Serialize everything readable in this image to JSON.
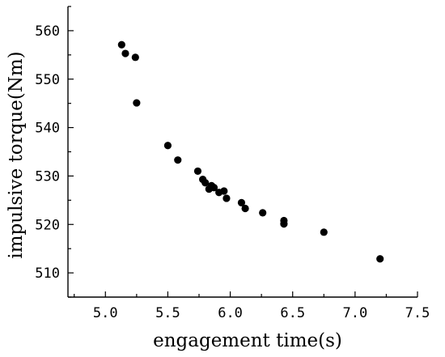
{
  "chart_data": {
    "type": "scatter",
    "title": "",
    "xlabel": "engagement time(s)",
    "ylabel": "impulsive torque(Nm)",
    "xlim": [
      4.7,
      7.5
    ],
    "ylim": [
      505,
      565
    ],
    "xticks": [
      5.0,
      5.5,
      6.0,
      6.5,
      7.0,
      7.5
    ],
    "xtick_labels": [
      "5.0",
      "5.5",
      "6.0",
      "6.5",
      "7.0",
      "7.5"
    ],
    "yticks": [
      510,
      520,
      530,
      540,
      550,
      560
    ],
    "ytick_labels": [
      "510",
      "520",
      "530",
      "540",
      "550",
      "560"
    ],
    "grid": false,
    "legend": "none",
    "marker_color": "#000000",
    "series": [
      {
        "x": [
          5.13,
          5.16,
          5.24,
          5.25,
          5.5,
          5.58,
          5.74,
          5.78,
          5.8,
          5.83,
          5.85,
          5.87,
          5.91,
          5.95,
          5.97,
          6.09,
          6.12,
          6.26,
          6.43,
          6.43,
          6.75,
          7.2
        ],
        "y": [
          557.1,
          555.3,
          554.5,
          545.1,
          536.3,
          533.3,
          531.0,
          529.3,
          528.6,
          527.3,
          528.0,
          527.6,
          526.6,
          526.9,
          525.4,
          524.5,
          523.3,
          522.4,
          520.8,
          520.1,
          518.4,
          512.9
        ]
      }
    ]
  }
}
